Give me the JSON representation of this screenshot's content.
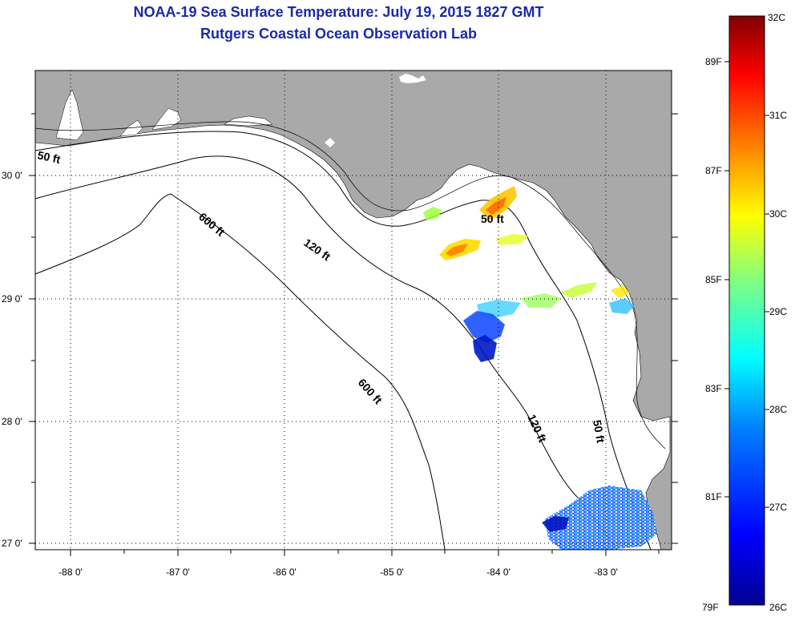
{
  "title": {
    "line1": "NOAA-19 Sea Surface Temperature:  July 19, 2015 1827 GMT",
    "line2": "Rutgers Coastal Ocean Observation Lab"
  },
  "map": {
    "lon_labels": [
      "-88 0'",
      "-87 0'",
      "-86 0'",
      "-85 0'",
      "-84 0'",
      "-83 0'"
    ],
    "lat_labels": [
      "30 0'",
      "29 0'",
      "28 0'",
      "27 0'"
    ],
    "contour_labels": [
      "50 ft",
      "600 ft",
      "120 ft",
      "50 ft",
      "600 ft",
      "120 ft",
      "50 ft"
    ],
    "colors": {
      "land": "#a9a9a9",
      "sea": "#ffffff",
      "grid": "#000000"
    }
  },
  "colorbar": {
    "celsius": [
      "32C",
      "31C",
      "30C",
      "29C",
      "28C",
      "27C",
      "26C"
    ],
    "fahrenheit": [
      "89F",
      "87F",
      "85F",
      "83F",
      "81F",
      "79F"
    ],
    "colors": [
      "#00008f",
      "#0000ff",
      "#0080ff",
      "#00ffff",
      "#80ff80",
      "#ffff00",
      "#ff8000",
      "#ff0000",
      "#800000"
    ]
  }
}
